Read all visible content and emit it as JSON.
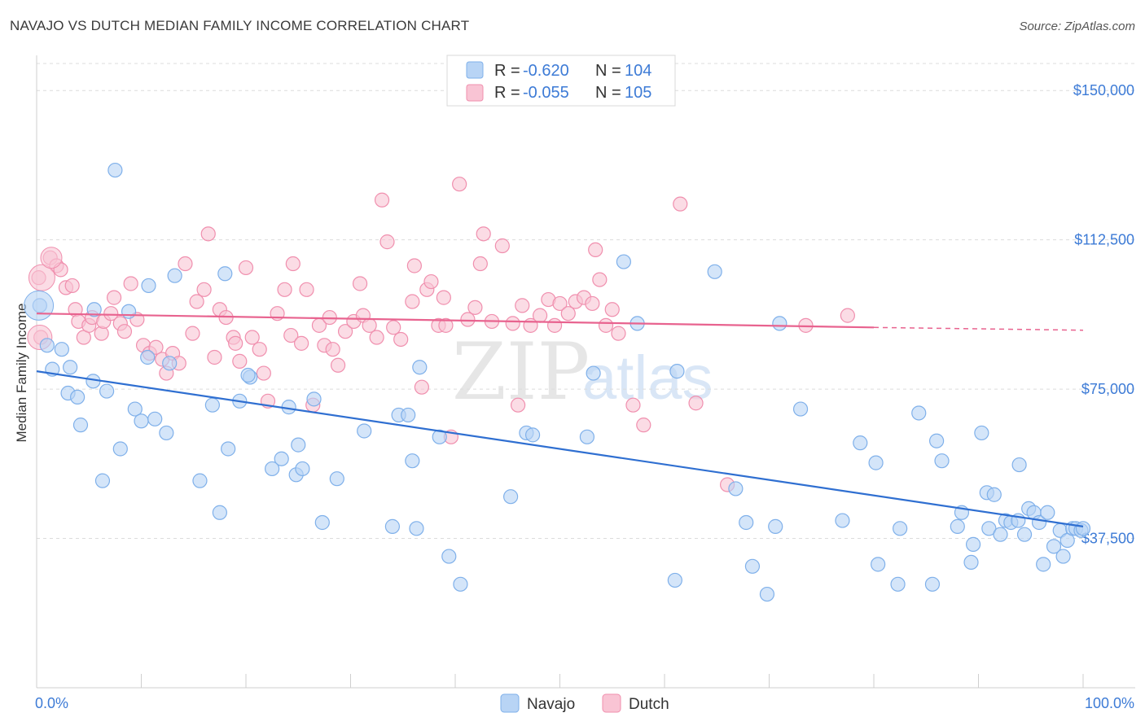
{
  "title": "NAVAJO VS DUTCH MEDIAN FAMILY INCOME CORRELATION CHART",
  "source": "Source: ZipAtlas.com",
  "watermark": {
    "zip": "ZIP",
    "atlas": "atlas"
  },
  "legend": {
    "series": [
      {
        "r_label": "R =",
        "r_value": "-0.620",
        "n_label": "N =",
        "n_value": "104"
      },
      {
        "r_label": "R =",
        "r_value": "-0.055",
        "n_label": "N =",
        "n_value": "105"
      }
    ]
  },
  "colors": {
    "navajo_fill": "#b8d4f5",
    "navajo_stroke": "#7fb0ea",
    "navajo_line": "#2f6fd1",
    "dutch_fill": "#f9c4d4",
    "dutch_stroke": "#f08fae",
    "dutch_line": "#e8638f",
    "accent_text": "#3d7bd6"
  },
  "chart_data": {
    "type": "scatter",
    "title": "NAVAJO VS DUTCH MEDIAN FAMILY INCOME CORRELATION CHART",
    "xlabel": "",
    "ylabel": "Median Family Income",
    "xlim": [
      0,
      100
    ],
    "ylim": [
      0,
      157000
    ],
    "x_tick_labels": [
      "0.0%",
      "100.0%"
    ],
    "y_ticks": [
      37500,
      75000,
      112500,
      150000
    ],
    "y_tick_labels": [
      "$37,500",
      "$75,000",
      "$112,500",
      "$150,000"
    ],
    "grid": true,
    "legend_position": "top-center",
    "series": [
      {
        "name": "Navajo",
        "r": -0.62,
        "n": 104,
        "trend": {
          "x0": 0,
          "y0": 79500,
          "x1": 100,
          "y1": 40500
        },
        "points": [
          [
            0.3,
            96000
          ],
          [
            1.0,
            86000
          ],
          [
            1.5,
            80000
          ],
          [
            2.4,
            85000
          ],
          [
            3.0,
            74000
          ],
          [
            3.2,
            80500
          ],
          [
            3.9,
            73000
          ],
          [
            4.2,
            66000
          ],
          [
            5.4,
            77000
          ],
          [
            5.5,
            95000
          ],
          [
            6.3,
            52000
          ],
          [
            6.7,
            74500
          ],
          [
            7.5,
            130000
          ],
          [
            8.0,
            60000
          ],
          [
            8.8,
            94500
          ],
          [
            9.4,
            70000
          ],
          [
            10.0,
            67000
          ],
          [
            10.6,
            83000
          ],
          [
            10.7,
            101000
          ],
          [
            11.3,
            67500
          ],
          [
            12.4,
            64000
          ],
          [
            12.7,
            81500
          ],
          [
            13.2,
            103500
          ],
          [
            15.6,
            52000
          ],
          [
            16.8,
            71000
          ],
          [
            17.5,
            44000
          ],
          [
            18.0,
            104000
          ],
          [
            18.3,
            60000
          ],
          [
            19.4,
            72000
          ],
          [
            20.4,
            78000
          ],
          [
            20.2,
            78500
          ],
          [
            22.5,
            55000
          ],
          [
            23.4,
            57500
          ],
          [
            24.1,
            70500
          ],
          [
            24.8,
            53500
          ],
          [
            25.0,
            61000
          ],
          [
            25.4,
            55000
          ],
          [
            26.5,
            72500
          ],
          [
            27.3,
            41500
          ],
          [
            28.7,
            52500
          ],
          [
            31.3,
            64500
          ],
          [
            34.0,
            40500
          ],
          [
            34.6,
            68500
          ],
          [
            35.5,
            68500
          ],
          [
            35.9,
            57000
          ],
          [
            36.3,
            40000
          ],
          [
            36.6,
            80500
          ],
          [
            38.5,
            63000
          ],
          [
            39.4,
            33000
          ],
          [
            40.5,
            26000
          ],
          [
            45.3,
            48000
          ],
          [
            46.8,
            64000
          ],
          [
            47.4,
            63500
          ],
          [
            52.6,
            63000
          ],
          [
            53.2,
            79000
          ],
          [
            56.1,
            107000
          ],
          [
            57.4,
            91500
          ],
          [
            61.0,
            27000
          ],
          [
            61.2,
            79500
          ],
          [
            64.8,
            104500
          ],
          [
            66.8,
            50000
          ],
          [
            67.8,
            41500
          ],
          [
            68.4,
            30500
          ],
          [
            69.8,
            23500
          ],
          [
            70.6,
            40500
          ],
          [
            71.0,
            91500
          ],
          [
            73.0,
            70000
          ],
          [
            77.0,
            42000
          ],
          [
            78.7,
            61500
          ],
          [
            80.2,
            56500
          ],
          [
            80.4,
            31000
          ],
          [
            82.3,
            26000
          ],
          [
            82.5,
            40000
          ],
          [
            84.3,
            69000
          ],
          [
            85.6,
            26000
          ],
          [
            86.0,
            62000
          ],
          [
            86.5,
            57000
          ],
          [
            88.0,
            40500
          ],
          [
            88.4,
            44000
          ],
          [
            89.3,
            31500
          ],
          [
            89.5,
            36000
          ],
          [
            90.3,
            64000
          ],
          [
            90.8,
            49000
          ],
          [
            91.0,
            40000
          ],
          [
            91.5,
            48500
          ],
          [
            92.1,
            38500
          ],
          [
            92.6,
            42000
          ],
          [
            93.1,
            41500
          ],
          [
            93.8,
            42000
          ],
          [
            93.9,
            56000
          ],
          [
            94.4,
            38500
          ],
          [
            94.8,
            45000
          ],
          [
            95.3,
            44000
          ],
          [
            95.8,
            41500
          ],
          [
            96.2,
            31000
          ],
          [
            96.6,
            44000
          ],
          [
            97.2,
            35500
          ],
          [
            97.8,
            39500
          ],
          [
            98.1,
            33000
          ],
          [
            98.5,
            37000
          ],
          [
            99.0,
            40000
          ],
          [
            99.3,
            40000
          ],
          [
            99.8,
            39500
          ],
          [
            100.0,
            40000
          ]
        ]
      },
      {
        "name": "Dutch",
        "r": -0.055,
        "n": 105,
        "trend": {
          "x0": 0,
          "y0": 94000,
          "x1": 80,
          "y1": 90500,
          "dashed_to_x": 100,
          "dashed_to_y": 89800
        },
        "points": [
          [
            0.2,
            103000
          ],
          [
            0.4,
            88000
          ],
          [
            1.3,
            108000
          ],
          [
            1.9,
            106000
          ],
          [
            2.3,
            105000
          ],
          [
            2.8,
            100500
          ],
          [
            3.4,
            101000
          ],
          [
            3.7,
            95000
          ],
          [
            4.0,
            92000
          ],
          [
            4.5,
            88000
          ],
          [
            5.0,
            91000
          ],
          [
            5.3,
            93000
          ],
          [
            6.2,
            89000
          ],
          [
            6.4,
            92000
          ],
          [
            7.1,
            94000
          ],
          [
            7.4,
            98000
          ],
          [
            8.0,
            91500
          ],
          [
            8.4,
            89500
          ],
          [
            9.0,
            101500
          ],
          [
            9.6,
            92500
          ],
          [
            10.2,
            86000
          ],
          [
            10.8,
            84000
          ],
          [
            11.4,
            85500
          ],
          [
            12.0,
            82500
          ],
          [
            12.4,
            79000
          ],
          [
            13.0,
            84000
          ],
          [
            13.6,
            81500
          ],
          [
            14.2,
            106500
          ],
          [
            14.9,
            89000
          ],
          [
            15.3,
            97000
          ],
          [
            16.0,
            100000
          ],
          [
            16.4,
            114000
          ],
          [
            17.0,
            83000
          ],
          [
            17.5,
            95000
          ],
          [
            18.1,
            93000
          ],
          [
            18.8,
            88000
          ],
          [
            19.0,
            86500
          ],
          [
            19.4,
            82000
          ],
          [
            20.0,
            105500
          ],
          [
            20.6,
            88000
          ],
          [
            21.3,
            85000
          ],
          [
            21.7,
            79000
          ],
          [
            22.1,
            72000
          ],
          [
            23.0,
            94000
          ],
          [
            23.7,
            100000
          ],
          [
            24.3,
            88500
          ],
          [
            24.5,
            106500
          ],
          [
            25.3,
            86500
          ],
          [
            25.8,
            100000
          ],
          [
            26.4,
            71000
          ],
          [
            27.0,
            91000
          ],
          [
            27.5,
            86000
          ],
          [
            28.0,
            93000
          ],
          [
            28.3,
            85000
          ],
          [
            28.8,
            81000
          ],
          [
            29.5,
            89500
          ],
          [
            30.3,
            92000
          ],
          [
            30.9,
            101500
          ],
          [
            31.2,
            93500
          ],
          [
            31.8,
            91000
          ],
          [
            32.5,
            88000
          ],
          [
            33.0,
            122500
          ],
          [
            33.5,
            112000
          ],
          [
            34.1,
            90500
          ],
          [
            34.8,
            87500
          ],
          [
            35.9,
            97000
          ],
          [
            36.1,
            106000
          ],
          [
            36.8,
            75500
          ],
          [
            37.3,
            100000
          ],
          [
            37.7,
            102000
          ],
          [
            38.4,
            91000
          ],
          [
            38.9,
            98000
          ],
          [
            39.1,
            91000
          ],
          [
            39.6,
            63000
          ],
          [
            40.4,
            126500
          ],
          [
            41.2,
            92500
          ],
          [
            41.9,
            95500
          ],
          [
            42.4,
            106500
          ],
          [
            42.7,
            114000
          ],
          [
            43.5,
            92000
          ],
          [
            44.5,
            111000
          ],
          [
            45.5,
            91500
          ],
          [
            46.0,
            71000
          ],
          [
            46.4,
            96000
          ],
          [
            47.2,
            91000
          ],
          [
            48.1,
            93500
          ],
          [
            48.9,
            97500
          ],
          [
            49.5,
            91000
          ],
          [
            50.0,
            96500
          ],
          [
            50.8,
            94000
          ],
          [
            51.5,
            97000
          ],
          [
            52.3,
            98000
          ],
          [
            53.1,
            96500
          ],
          [
            53.4,
            110000
          ],
          [
            53.8,
            102500
          ],
          [
            54.4,
            91000
          ],
          [
            55.0,
            95000
          ],
          [
            55.6,
            89000
          ],
          [
            57.0,
            71000
          ],
          [
            58.0,
            66000
          ],
          [
            61.5,
            121500
          ],
          [
            63.0,
            71500
          ],
          [
            66.0,
            51000
          ],
          [
            73.5,
            91000
          ],
          [
            77.5,
            93500
          ]
        ]
      }
    ]
  }
}
